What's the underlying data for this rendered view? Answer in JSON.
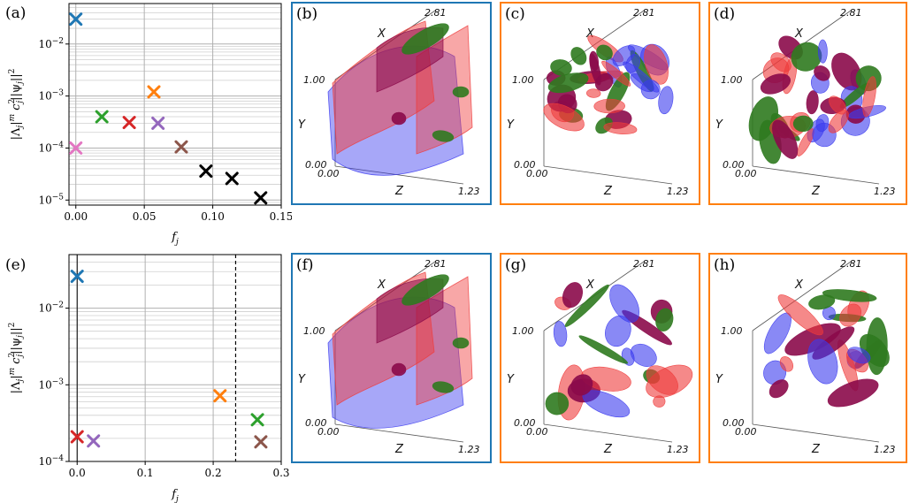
{
  "panels": {
    "a": "(a)",
    "b": "(b)",
    "c": "(c)",
    "d": "(d)",
    "e": "(e)",
    "f": "(f)",
    "g": "(g)",
    "h": "(h)"
  },
  "colors": {
    "frame_blue": "#1f77b4",
    "frame_orange": "#ff7f0e",
    "iso_red": "#ef3b3b",
    "iso_blue": "#3b3bef",
    "iso_green": "#2f7a1f",
    "iso_purple": "#8b0a4a"
  },
  "cube_axes": {
    "x_label": "X",
    "y_label": "Y",
    "z_label": "Z",
    "x_max": "2.81",
    "y_max": "1.00",
    "z_max": "1.23",
    "origin_y": "0.00",
    "origin_z": "0.00"
  },
  "chart_data": [
    {
      "type": "scatter",
      "title": "",
      "xlabel": "f_j",
      "ylabel": "|Λ_j|^m c_j^2 ||ψ_j||^2",
      "yscale": "log",
      "xlim": [
        -0.005,
        0.15
      ],
      "ylim": [
        8e-06,
        0.06
      ],
      "xticks": [
        "0.00",
        "0.05",
        "0.10",
        "0.15"
      ],
      "yticks": [
        "10^-5",
        "10^-4",
        "10^-3",
        "10^-2"
      ],
      "grid": true,
      "points": [
        {
          "x": 0.0,
          "y": 0.03,
          "color": "#1f77b4"
        },
        {
          "x": 0.0,
          "y": 0.0001,
          "color": "#e377c2"
        },
        {
          "x": 0.019,
          "y": 0.0004,
          "color": "#2ca02c"
        },
        {
          "x": 0.039,
          "y": 0.00031,
          "color": "#d62728"
        },
        {
          "x": 0.057,
          "y": 0.0012,
          "color": "#ff7f0e"
        },
        {
          "x": 0.06,
          "y": 0.0003,
          "color": "#9467bd"
        },
        {
          "x": 0.077,
          "y": 0.000105,
          "color": "#8c564b"
        },
        {
          "x": 0.095,
          "y": 3.6e-05,
          "color": "#000000"
        },
        {
          "x": 0.114,
          "y": 2.6e-05,
          "color": "#000000"
        },
        {
          "x": 0.135,
          "y": 1.1e-05,
          "color": "#000000"
        }
      ]
    },
    {
      "type": "scatter",
      "title": "",
      "xlabel": "f_j",
      "ylabel": "|Λ_j|^m c_j^2 ||ψ_j||^2",
      "yscale": "log",
      "xlim": [
        -0.012,
        0.3
      ],
      "ylim": [
        0.0001,
        0.05
      ],
      "xticks": [
        "0.0",
        "0.1",
        "0.2",
        "0.3"
      ],
      "yticks": [
        "10^-4",
        "10^-3",
        "10^-2"
      ],
      "grid": true,
      "vline_dashed": 0.233,
      "vline_solid": 0.0,
      "points": [
        {
          "x": 0.0,
          "y": 0.026,
          "color": "#1f77b4"
        },
        {
          "x": 0.0,
          "y": 0.00021,
          "color": "#d62728"
        },
        {
          "x": 0.024,
          "y": 0.000185,
          "color": "#9467bd"
        },
        {
          "x": 0.21,
          "y": 0.00072,
          "color": "#ff7f0e"
        },
        {
          "x": 0.265,
          "y": 0.00035,
          "color": "#2ca02c"
        },
        {
          "x": 0.27,
          "y": 0.00018,
          "color": "#8c564b"
        }
      ]
    }
  ]
}
